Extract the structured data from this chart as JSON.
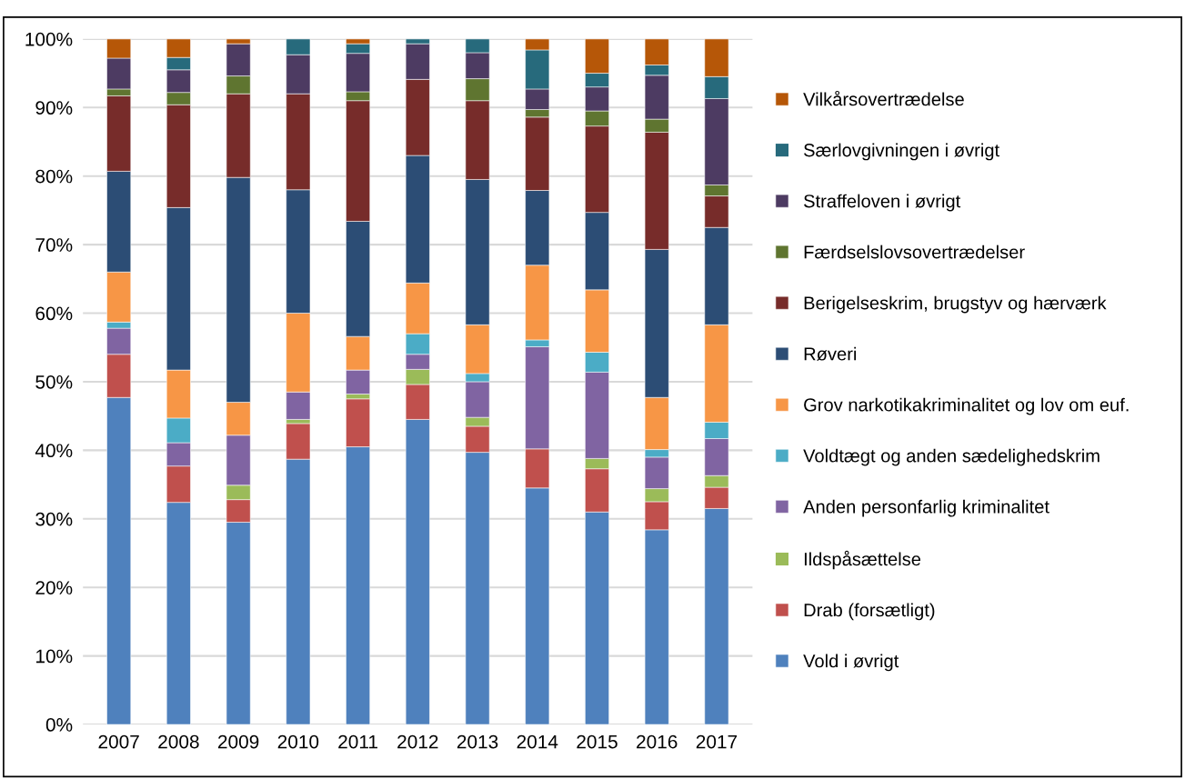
{
  "chart_data": {
    "type": "bar",
    "stacked": true,
    "categories": [
      "2007",
      "2008",
      "2009",
      "2010",
      "2011",
      "2012",
      "2013",
      "2014",
      "2015",
      "2016",
      "2017"
    ],
    "ylim": [
      0,
      100
    ],
    "yticks": [
      {
        "value": 0,
        "label": "0%"
      },
      {
        "value": 10,
        "label": "10%"
      },
      {
        "value": 20,
        "label": "20%"
      },
      {
        "value": 30,
        "label": "30%"
      },
      {
        "value": 40,
        "label": "40%"
      },
      {
        "value": 50,
        "label": "50%"
      },
      {
        "value": 60,
        "label": "60%"
      },
      {
        "value": 70,
        "label": "70%"
      },
      {
        "value": 80,
        "label": "80%"
      },
      {
        "value": 90,
        "label": "90%"
      },
      {
        "value": 100,
        "label": "100%"
      }
    ],
    "grid": "y",
    "legend": "right",
    "series": [
      {
        "name": "Vold i øvrigt",
        "color": "#4f81bd",
        "values": [
          47.7,
          32.4,
          29.5,
          38.7,
          40.5,
          44.5,
          39.7,
          34.5,
          31.0,
          28.4,
          31.5
        ]
      },
      {
        "name": "Drab (forsætligt)",
        "color": "#c0504d",
        "values": [
          6.3,
          5.3,
          3.3,
          5.2,
          7.0,
          5.1,
          3.8,
          5.7,
          6.3,
          4.1,
          3.1
        ]
      },
      {
        "name": "Ildspåsættelse",
        "color": "#9bbb59",
        "values": [
          0,
          0,
          2.1,
          0.6,
          0.7,
          2.2,
          1.3,
          0,
          1.5,
          1.9,
          1.7
        ]
      },
      {
        "name": "Anden personfarlig kriminalitet",
        "color": "#8064a2",
        "values": [
          3.8,
          3.4,
          7.3,
          4.0,
          3.5,
          2.2,
          5.2,
          14.9,
          12.6,
          4.6,
          5.4
        ]
      },
      {
        "name": "Voldtægt og anden sædelighedskrim",
        "color": "#4bacc6",
        "values": [
          0.9,
          3.6,
          0,
          0,
          0,
          3.0,
          1.2,
          1.0,
          2.9,
          1.1,
          2.4
        ]
      },
      {
        "name": "Grov narkotikakriminalitet og lov om euf.",
        "color": "#f79646",
        "values": [
          7.3,
          7.0,
          4.8,
          11.5,
          4.9,
          7.4,
          7.1,
          10.9,
          9.1,
          7.6,
          14.2
        ]
      },
      {
        "name": "Røveri",
        "color": "#2c4d75",
        "values": [
          14.7,
          23.7,
          32.8,
          18.0,
          16.8,
          18.6,
          21.2,
          10.9,
          11.3,
          21.6,
          14.2
        ]
      },
      {
        "name": "Berigelseskrim, brugstyv og hærværk",
        "color": "#772c2a",
        "values": [
          11.0,
          15.0,
          12.2,
          14.0,
          17.6,
          11.1,
          11.5,
          10.7,
          12.6,
          17.1,
          4.6
        ]
      },
      {
        "name": "Færdselslovsovertrædelser",
        "color": "#5f7530",
        "values": [
          1.0,
          1.8,
          2.6,
          0,
          1.3,
          0,
          3.2,
          1.1,
          2.2,
          1.9,
          1.6
        ]
      },
      {
        "name": "Straffeloven i øvrigt",
        "color": "#4d3b62",
        "values": [
          4.5,
          3.3,
          4.7,
          5.7,
          5.6,
          5.2,
          3.8,
          3.0,
          3.5,
          6.4,
          12.6
        ]
      },
      {
        "name": "Særlovgivningen i øvrigt",
        "color": "#276a7c",
        "values": [
          0,
          1.8,
          0,
          2.3,
          1.4,
          0.7,
          2.0,
          5.7,
          2.0,
          1.5,
          3.2
        ]
      },
      {
        "name": "Vilkårsovertrædelse",
        "color": "#b65708",
        "values": [
          2.8,
          2.7,
          0.7,
          0,
          0.7,
          0,
          0,
          1.6,
          5.0,
          3.8,
          5.5
        ]
      }
    ]
  }
}
